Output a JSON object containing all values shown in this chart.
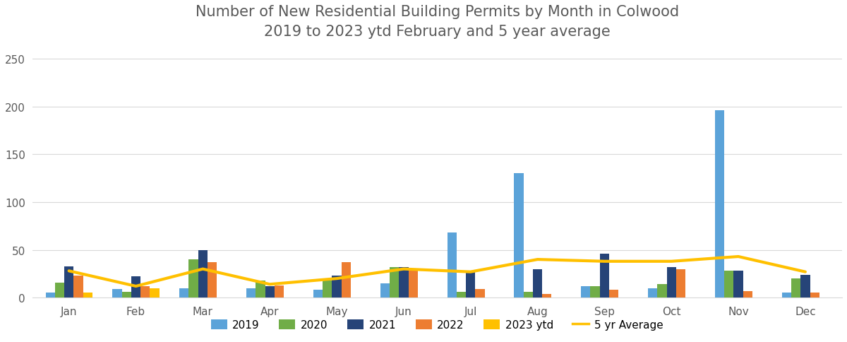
{
  "title_line1": "Number of New Residential Building Permits by Month in Colwood",
  "title_line2": "2019 to 2023 ytd February and 5 year average",
  "months": [
    "Jan",
    "Feb",
    "Mar",
    "Apr",
    "May",
    "Jun",
    "Jul",
    "Aug",
    "Sep",
    "Oct",
    "Nov",
    "Dec"
  ],
  "series": {
    "2019": [
      5,
      9,
      10,
      10,
      8,
      15,
      68,
      130,
      12,
      10,
      196,
      5
    ],
    "2020": [
      16,
      6,
      40,
      18,
      18,
      32,
      6,
      6,
      12,
      14,
      28,
      20
    ],
    "2021": [
      33,
      22,
      50,
      12,
      23,
      32,
      27,
      30,
      46,
      32,
      28,
      24
    ],
    "2022": [
      23,
      12,
      37,
      13,
      37,
      28,
      9,
      4,
      8,
      30,
      7,
      5
    ],
    "2023ytd": [
      5,
      10,
      null,
      null,
      null,
      null,
      null,
      null,
      null,
      null,
      null,
      null
    ]
  },
  "avg_5yr": [
    28,
    12,
    30,
    14,
    20,
    30,
    27,
    40,
    38,
    38,
    43,
    27
  ],
  "colors": {
    "2019": "#5BA3D9",
    "2020": "#70AD47",
    "2021": "#264478",
    "2022": "#ED7D31",
    "2023ytd": "#FFC000",
    "avg_5yr": "#FFC000"
  },
  "ylim": [
    0,
    260
  ],
  "yticks": [
    0,
    50,
    100,
    150,
    200,
    250
  ],
  "title_fontsize": 15,
  "title_color": "#595959",
  "background_color": "#ffffff",
  "grid_color": "#d9d9d9",
  "bar_width": 0.14,
  "figsize": [
    12.0,
    4.85
  ],
  "dpi": 100
}
